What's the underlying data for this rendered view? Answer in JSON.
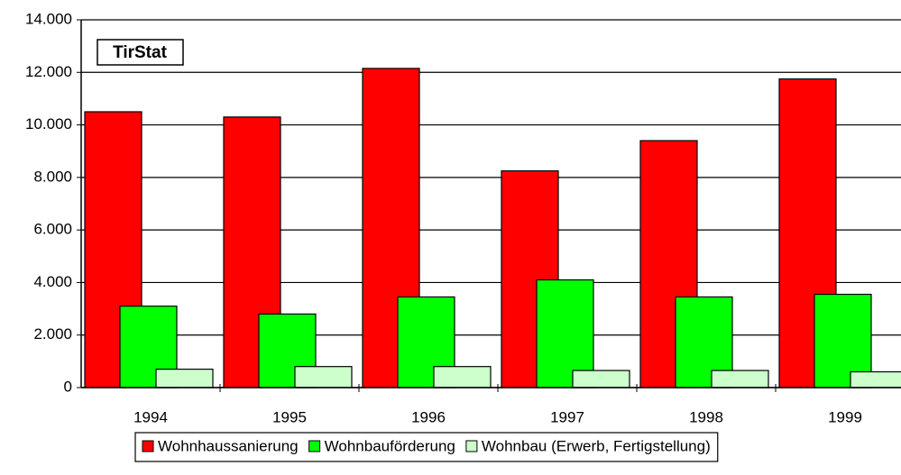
{
  "chart_data": {
    "type": "bar",
    "annotation": "TirStat",
    "categories": [
      "1994",
      "1995",
      "1996",
      "1997",
      "1998",
      "1999"
    ],
    "series": [
      {
        "name": "Wohnhaussanierung",
        "color": "#ff0000",
        "values": [
          10500,
          10300,
          12150,
          8250,
          9400,
          11750
        ]
      },
      {
        "name": "Wohnbauförderung",
        "color": "#00ff00",
        "values": [
          3100,
          2800,
          3450,
          4100,
          3450,
          3550
        ]
      },
      {
        "name": "Wohnbau (Erwerb, Fertigstellung)",
        "color": "#ccffcc",
        "values": [
          700,
          800,
          800,
          650,
          650,
          600
        ]
      }
    ],
    "ylim": [
      0,
      14000
    ],
    "yticks": [
      0,
      {
        "value": 2000,
        "label": "2.000"
      },
      {
        "value": 4000,
        "label": "4.000"
      },
      {
        "value": 6000,
        "label": "6.000"
      },
      {
        "value": 8000,
        "label": "8.000"
      },
      {
        "value": 10000,
        "label": "10.000"
      },
      {
        "value": 12000,
        "label": "12.000"
      },
      {
        "value": 14000,
        "label": "14.000"
      }
    ],
    "grid": true,
    "legend": "bottom"
  }
}
